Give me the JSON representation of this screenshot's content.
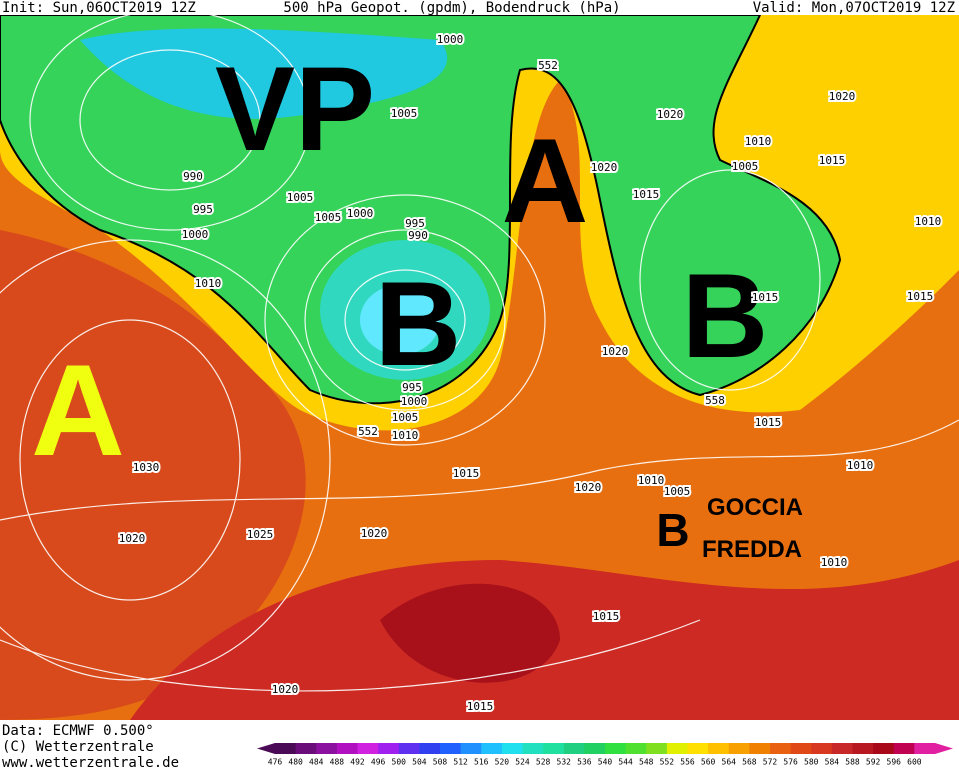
{
  "header": {
    "init": "Init: Sun,06OCT2019 12Z",
    "title": "500 hPa Geopot. (gpdm), Bodendruck (hPa)",
    "valid": "Valid: Mon,07OCT2019 12Z"
  },
  "labels": {
    "vp": "VP",
    "a_north": "A",
    "b_west": "B",
    "b_east": "B",
    "a_atlantic": "A",
    "b_small": "B",
    "goccia": "GOCCIA",
    "fredda": "FREDDA"
  },
  "isobar_labels": [
    "1000",
    "552",
    "1020",
    "1005",
    "1020",
    "1010",
    "990",
    "1005",
    "1015",
    "1020",
    "1005",
    "1015",
    "995",
    "1005",
    "1000",
    "995",
    "990",
    "1000",
    "1010",
    "1010",
    "1015",
    "1015",
    "1020",
    "995",
    "1000",
    "558",
    "1005",
    "552",
    "1010",
    "1015",
    "1010",
    "1030",
    "1015",
    "1020",
    "1010",
    "1005",
    "1020",
    "1025",
    "1020",
    "1010",
    "1015",
    "1020",
    "1015"
  ],
  "footer": {
    "data": "Data: ECMWF  0.500°",
    "copyright": "(C) Wetterzentrale",
    "url": "www.wetterzentrale.de"
  },
  "legend": {
    "values": [
      476,
      480,
      484,
      488,
      492,
      496,
      500,
      504,
      508,
      512,
      516,
      520,
      524,
      528,
      532,
      536,
      540,
      544,
      548,
      552,
      556,
      560,
      564,
      568,
      572,
      576,
      580,
      584,
      588,
      592,
      596,
      600
    ],
    "colors": [
      "#4b0a55",
      "#6a0d7a",
      "#8b10a0",
      "#b010c0",
      "#d020e0",
      "#a020f0",
      "#6030f0",
      "#3040f0",
      "#2060ff",
      "#2090ff",
      "#20c0ff",
      "#20e0f0",
      "#20e0c0",
      "#20e0a0",
      "#20d080",
      "#20d060",
      "#30e040",
      "#50e030",
      "#80e020",
      "#e0f000",
      "#ffe000",
      "#ffc000",
      "#f8a000",
      "#f08000",
      "#e86010",
      "#e04818",
      "#d83820",
      "#c82828",
      "#b81820",
      "#a80818",
      "#c00050",
      "#e020a0"
    ]
  }
}
